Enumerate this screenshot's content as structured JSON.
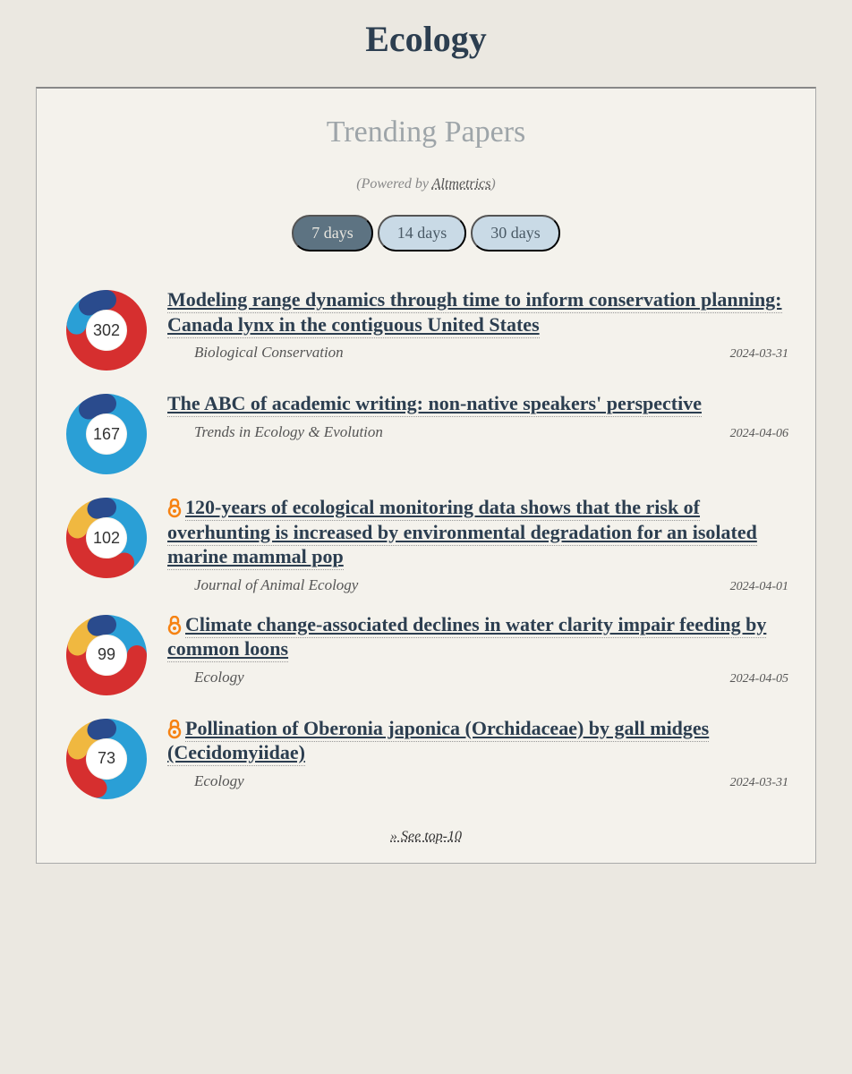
{
  "page": {
    "title": "Ecology"
  },
  "section": {
    "title": "Trending Papers",
    "powered_prefix": "(Powered by ",
    "powered_link": "Altmetrics",
    "powered_suffix": ")",
    "see_more": "» See top-10"
  },
  "tabs": [
    {
      "label": "7 days",
      "active": true
    },
    {
      "label": "14 days",
      "active": false
    },
    {
      "label": "30 days",
      "active": false
    }
  ],
  "colors": {
    "primary_text": "#2c3e50",
    "background": "#ebe8e1",
    "card_bg": "#f4f2ec",
    "tab_active_bg": "#5d7382",
    "tab_inactive_bg": "#c9dae6",
    "oa_icon": "#f68212",
    "donut_red": "#d62f2f",
    "donut_blue": "#2a9fd6",
    "donut_yellow": "#f0b840",
    "donut_darkblue": "#2a4b8d"
  },
  "papers": [
    {
      "score": "302",
      "open_access": false,
      "title": "Modeling range dynamics through time to inform conservation planning: Canada lynx in the contiguous United States",
      "journal": "Biological Conservation",
      "date": "2024-03-31",
      "segments": [
        {
          "color": "#d62f2f",
          "fraction": 0.78
        },
        {
          "color": "#2a9fd6",
          "fraction": 0.12
        },
        {
          "color": "#2a4b8d",
          "fraction": 0.1
        }
      ]
    },
    {
      "score": "167",
      "open_access": false,
      "title": "The ABC of academic writing: non-native speakers' perspective",
      "journal": "Trends in Ecology & Evolution",
      "date": "2024-04-06",
      "segments": [
        {
          "color": "#2a9fd6",
          "fraction": 0.9
        },
        {
          "color": "#2a4b8d",
          "fraction": 0.1
        }
      ]
    },
    {
      "score": "102",
      "open_access": true,
      "title": "120-years of ecological monitoring data shows that the risk of overhunting is increased by environmental degradation for an isolated marine mammal pop",
      "journal": "Journal of Animal Ecology",
      "date": "2024-04-01",
      "segments": [
        {
          "color": "#2a9fd6",
          "fraction": 0.4
        },
        {
          "color": "#d62f2f",
          "fraction": 0.4
        },
        {
          "color": "#f0b840",
          "fraction": 0.15
        },
        {
          "color": "#2a4b8d",
          "fraction": 0.05
        }
      ]
    },
    {
      "score": "99",
      "open_access": true,
      "title": "Climate change-associated declines in water clarity impair feeding by common loons",
      "journal": "Ecology",
      "date": "2024-04-05",
      "segments": [
        {
          "color": "#2a9fd6",
          "fraction": 0.25
        },
        {
          "color": "#d62f2f",
          "fraction": 0.55
        },
        {
          "color": "#f0b840",
          "fraction": 0.15
        },
        {
          "color": "#2a4b8d",
          "fraction": 0.05
        }
      ]
    },
    {
      "score": "73",
      "open_access": true,
      "title": "Pollination of Oberonia japonica (Orchidaceae) by gall midges (Cecidomyiidae)",
      "journal": "Ecology",
      "date": "2024-03-31",
      "segments": [
        {
          "color": "#2a9fd6",
          "fraction": 0.55
        },
        {
          "color": "#d62f2f",
          "fraction": 0.25
        },
        {
          "color": "#f0b840",
          "fraction": 0.15
        },
        {
          "color": "#2a4b8d",
          "fraction": 0.05
        }
      ]
    }
  ]
}
